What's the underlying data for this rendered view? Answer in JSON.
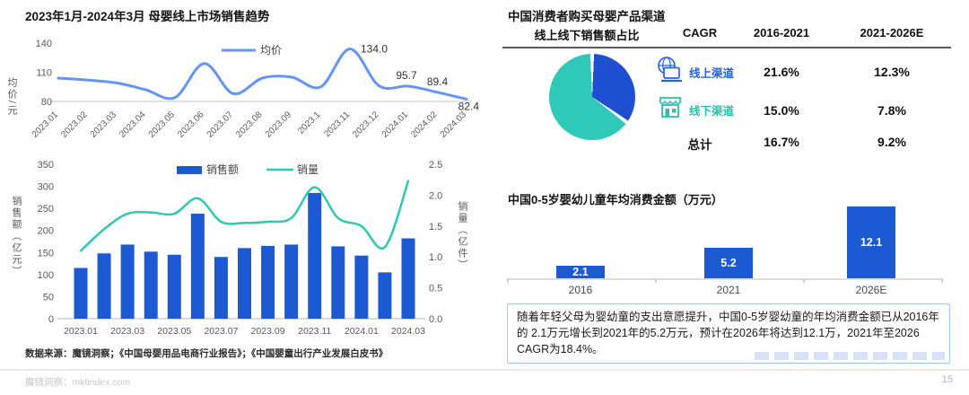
{
  "left": {
    "title": "2023年1月-2024年3月 母婴线上市场销售趋势",
    "source": "数据来源：魔镜洞察；《中国母婴用品电商行业报告》；《中国婴童出行产业发展白皮书》"
  },
  "right": {
    "title": "中国消费者购买母婴产品渠道",
    "table": {
      "headers": [
        "线上线下销售额占比",
        "CAGR",
        "2016-2021",
        "2021-2026E"
      ],
      "rows": [
        {
          "icon": "globe-laptop-icon",
          "label": "线上渠道",
          "v1": "21.6%",
          "v2": "12.3%",
          "color": "#2563d8"
        },
        {
          "icon": "storefront-icon",
          "label": "线下渠道",
          "v1": "15.0%",
          "v2": "7.8%",
          "color": "#2bbfae"
        },
        {
          "icon": null,
          "label": "总计",
          "v1": "16.7%",
          "v2": "9.2%",
          "color": "#111111"
        }
      ]
    },
    "consumption_title": "中国0-5岁婴幼儿童年均消费金额（万元）",
    "note": "随着年轻父母为婴幼童的支出意愿提升，中国0-5岁婴幼童的年均消费金额已从2016年的 2.1万元增长到2021年的5.2万元，预计在2026年将达到12.1万，2021年至2026 CAGR为18.4%。"
  },
  "footer": {
    "brand": "魔镜洞察：mktindex.com",
    "page": "15"
  },
  "chart_data": [
    {
      "id": "avg-price-line",
      "type": "line",
      "legend": [
        "均价"
      ],
      "x": [
        "2023.01",
        "2023.02",
        "2023.03",
        "2023.04",
        "2023.05",
        "2023.06",
        "2023.07",
        "2023.08",
        "2023.09",
        "2023.1",
        "2023.11",
        "2023.12",
        "2024.01",
        "2024.02",
        "2024.03"
      ],
      "values": [
        104,
        102,
        99,
        92,
        84,
        119,
        88,
        104,
        105,
        95,
        134,
        96,
        95.7,
        89.4,
        82.4
      ],
      "point_labels": {
        "10": "134.0",
        "12": "95.7",
        "13": "89.4",
        "14": "82.4"
      },
      "ylabel": "均价/元",
      "yticks": [
        80,
        110,
        140
      ],
      "ylim": [
        80,
        140
      ],
      "grid": false,
      "legend_position": "top-center",
      "line_color": "#6495f2"
    },
    {
      "id": "sales-volume-combo",
      "type": "bar+line",
      "legend": [
        "销售额",
        "销量"
      ],
      "x": [
        "2023.01",
        "2023.02",
        "2023.03",
        "2023.04",
        "2023.05",
        "2023.06",
        "2023.07",
        "2023.08",
        "2023.09",
        "2023.1",
        "2023.11",
        "2023.12",
        "2024.01",
        "2024.02",
        "2024.03"
      ],
      "series": [
        {
          "name": "销售额",
          "type": "bar",
          "axis": "left",
          "values": [
            115,
            148,
            168,
            152,
            145,
            238,
            140,
            160,
            165,
            168,
            285,
            164,
            143,
            105,
            182
          ]
        },
        {
          "name": "销量",
          "type": "line",
          "axis": "right",
          "values": [
            1.1,
            1.45,
            1.7,
            1.72,
            1.7,
            1.95,
            1.57,
            1.55,
            1.57,
            1.63,
            2.13,
            1.63,
            1.5,
            1.16,
            2.23
          ]
        }
      ],
      "ylabel_left": "销售额（亿元）",
      "ylabel_right": "销量（亿件）",
      "yticks_left": [
        0,
        50,
        100,
        150,
        200,
        250,
        300,
        350
      ],
      "yticks_right": [
        0,
        0.5,
        1.0,
        1.5,
        2.0,
        2.5
      ],
      "ylim_left": [
        0,
        350
      ],
      "ylim_right": [
        0,
        2.5
      ],
      "x_label_step": 2,
      "bar_color": "#1b5ad2",
      "line_color": "#2ec9b4"
    },
    {
      "id": "channel-pie",
      "type": "pie",
      "slices": [
        {
          "label": "线上渠道",
          "value": 35,
          "color": "#1d4fd0"
        },
        {
          "label": "线下渠道",
          "value": 65,
          "color": "#2fc9b9"
        }
      ],
      "note": "share estimated from slice angles; no labels shown on pie"
    },
    {
      "id": "consumption-bar",
      "type": "bar",
      "title": "中国0-5岁婴幼儿童年均消费金额（万元）",
      "categories": [
        "2016",
        "2021",
        "2026E"
      ],
      "values": [
        2.1,
        5.2,
        12.1
      ],
      "bar_color": "#1b5ad2",
      "value_label_color": "#ffffff"
    }
  ]
}
